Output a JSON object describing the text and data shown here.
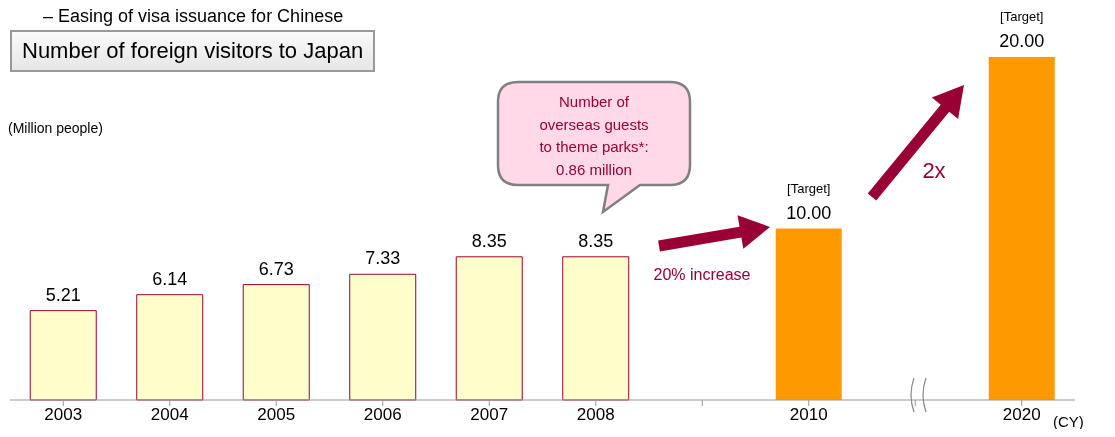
{
  "chart_data": {
    "type": "bar",
    "title": "Number of foreign visitors to Japan",
    "ylabel": "(Million people)",
    "xlabel": "(CY)",
    "categories": [
      "2003",
      "2004",
      "2005",
      "2006",
      "2007",
      "2008",
      null,
      "2010",
      null,
      "2020"
    ],
    "values": [
      5.21,
      6.14,
      6.73,
      7.33,
      8.35,
      8.35,
      null,
      10,
      null,
      20
    ],
    "value_labels": [
      "5.21",
      "6.14",
      "6.73",
      "7.33",
      "8.35",
      "8.35",
      null,
      "10.00",
      null,
      "20.00"
    ],
    "colors": [
      "#ffffcc",
      "#ffffcc",
      "#ffffcc",
      "#ffffcc",
      "#ffffcc",
      "#ffffcc",
      "#ffffcc",
      "#ff9900",
      "#ffffcc",
      "#ff9900"
    ],
    "tick_labels": "x",
    "annotations": [
      "– Easing of visa issuance for Chinese",
      {
        "text": "[Target]",
        "x": "2010",
        "y": 10
      },
      {
        "text": "[Target]",
        "x": "2020",
        "y": 20
      },
      "20% increase",
      "2x",
      "Number of\noverseas guests\nto theme parks*:\n0.86 million"
    ]
  }
}
